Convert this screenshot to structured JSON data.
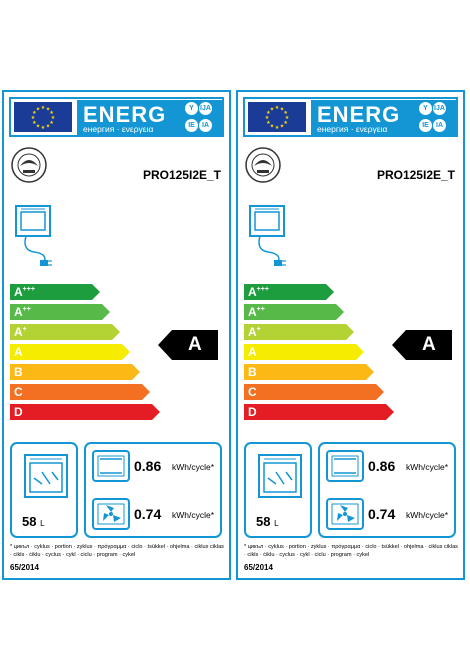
{
  "labels": [
    {
      "header": {
        "energy": "ENERG",
        "languages": "енергия · ενεργεια",
        "codes": [
          "Y",
          "IJA",
          "IE",
          "IA"
        ]
      },
      "model": "PRO125I2E_T",
      "classes": [
        {
          "letter": "A",
          "plus": "+++",
          "color": "#1e9d3e"
        },
        {
          "letter": "A",
          "plus": "++",
          "color": "#56b948"
        },
        {
          "letter": "A",
          "plus": "+",
          "color": "#b3d335"
        },
        {
          "letter": "A",
          "plus": "",
          "color": "#f5ec00"
        },
        {
          "letter": "B",
          "plus": "",
          "color": "#fcb814"
        },
        {
          "letter": "C",
          "plus": "",
          "color": "#f36f21"
        },
        {
          "letter": "D",
          "plus": "",
          "color": "#e31d23"
        }
      ],
      "rating": "A",
      "volume": {
        "value": "58",
        "unit": "L"
      },
      "consumption": [
        {
          "icon": "conventional-oven-icon",
          "value": "0.86",
          "unit": "kWh/cycle*"
        },
        {
          "icon": "fan-oven-icon",
          "value": "0.74",
          "unit": "kWh/cycle*"
        }
      ],
      "footnote": "* цикъл · cyklus · portion · zyklus · πρόγραμμα · ciclo · tsükkel · ohjelma · ciklus ciklas · cikls · ċiklu · cyclus · cykl · ciclu · program · cykel",
      "regulation": "65/2014"
    },
    {
      "header": {
        "energy": "ENERG",
        "languages": "енергия · ενεργεια",
        "codes": [
          "Y",
          "IJA",
          "IE",
          "IA"
        ]
      },
      "model": "PRO125I2E_T",
      "classes": [
        {
          "letter": "A",
          "plus": "+++",
          "color": "#1e9d3e"
        },
        {
          "letter": "A",
          "plus": "++",
          "color": "#56b948"
        },
        {
          "letter": "A",
          "plus": "+",
          "color": "#b3d335"
        },
        {
          "letter": "A",
          "plus": "",
          "color": "#f5ec00"
        },
        {
          "letter": "B",
          "plus": "",
          "color": "#fcb814"
        },
        {
          "letter": "C",
          "plus": "",
          "color": "#f36f21"
        },
        {
          "letter": "D",
          "plus": "",
          "color": "#e31d23"
        }
      ],
      "rating": "A",
      "volume": {
        "value": "58",
        "unit": "L"
      },
      "consumption": [
        {
          "icon": "conventional-oven-icon",
          "value": "0.86",
          "unit": "kWh/cycle*"
        },
        {
          "icon": "fan-oven-icon",
          "value": "0.74",
          "unit": "kWh/cycle*"
        }
      ],
      "footnote": "* цикъл · cyklus · portion · zyklus · πρόγραμμα · ciclo · tsükkel · ohjelma · ciklus ciklas · cikls · ċiklu · cyclus · cykl · ciclu · program · cykel",
      "regulation": "65/2014"
    }
  ]
}
